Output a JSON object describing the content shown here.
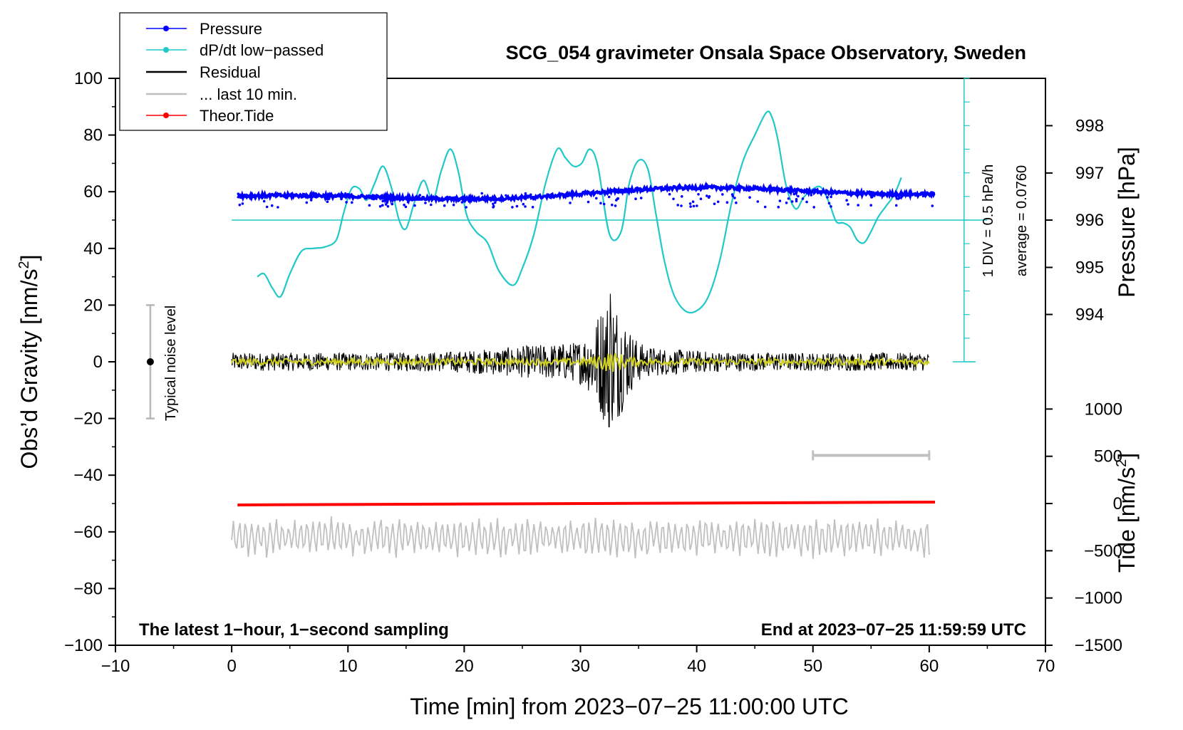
{
  "chart_data": {
    "type": "line",
    "title": "SCG_054 gravimeter Onsala Space Observatory, Sweden",
    "xlabel": "Time [min] from 2023−07−25 11:00:00 UTC",
    "ylabel_left": "Obs’d Gravity [nm/s",
    "ylabel_left_sup": "2",
    "ylabel_left_end": "]",
    "ylabel_right_pressure": "Pressure [hPa]",
    "ylabel_right_tide": "Tide [nm/s",
    "ylabel_right_tide_sup": "2",
    "ylabel_right_tide_end": "]",
    "xlim": [
      -10,
      70
    ],
    "ylim": [
      -100,
      100
    ],
    "x_ticks": [
      "−10",
      "0",
      "10",
      "20",
      "30",
      "40",
      "50",
      "60",
      "70"
    ],
    "x_tick_values": [
      -10,
      0,
      10,
      20,
      30,
      40,
      50,
      60,
      70
    ],
    "y_ticks": [
      "100",
      "80",
      "60",
      "40",
      "20",
      "0",
      "−20",
      "−40",
      "−60",
      "−80",
      "−100"
    ],
    "y_tick_values": [
      100,
      80,
      60,
      40,
      20,
      0,
      -20,
      -40,
      -60,
      -80,
      -100
    ],
    "pressure_axis": {
      "ticks": [
        "998",
        "997",
        "996",
        "995",
        "994"
      ],
      "tick_values": [
        998,
        997,
        996,
        995,
        994
      ],
      "gravity_equiv": [
        83.3,
        66.6,
        50,
        33.3,
        16.7
      ]
    },
    "tide_axis": {
      "ticks": [
        "1000",
        "500",
        "0",
        "−500",
        "−1000",
        "−1500"
      ],
      "tick_values": [
        1000,
        500,
        0,
        -500,
        -1000,
        -1500
      ]
    },
    "legend": [
      {
        "label": "Pressure",
        "color": "#0000ff",
        "marker": true
      },
      {
        "label": "dP/dt low−passed",
        "color": "#20c8c8",
        "marker": true
      },
      {
        "label": "Residual",
        "color": "#000000",
        "marker": false
      },
      {
        "label": "... last 10 min.",
        "color": "#c0c0c0",
        "marker": false
      },
      {
        "label": "Theor.Tide",
        "color": "#ff0000",
        "marker": true
      }
    ],
    "dpdt_scale": {
      "label1": "1 DIV = 0.5 hPa/h",
      "label2": "average = 0.0760",
      "zero_level": 50
    },
    "dpdt_series": {
      "x": [
        2.2,
        2.8,
        3.5,
        4.2,
        5,
        6,
        7,
        8,
        9,
        9.6,
        10.3,
        11,
        11.6,
        12.3,
        13,
        13.7,
        14.4,
        15,
        15.7,
        16.5,
        17.3,
        18,
        18.8,
        19.5,
        20.2,
        21,
        22,
        23,
        24.2,
        25,
        26,
        27,
        28,
        28.7,
        29.4,
        30.1,
        30.8,
        31.5,
        32.5,
        33.5,
        34.2,
        35,
        35.8,
        36.5,
        37.2,
        38,
        39,
        40,
        41,
        42,
        43,
        44,
        45,
        46,
        46.5,
        47,
        47.7,
        48.5,
        49.2,
        50,
        50.7,
        51.4,
        52,
        52.6,
        53.2,
        53.8,
        54.4,
        55,
        55.6,
        56.3,
        57,
        57.6
      ],
      "y": [
        30,
        31,
        26,
        23,
        31,
        39,
        40,
        40.5,
        43,
        52,
        61,
        61,
        57,
        63,
        69,
        62,
        50,
        47,
        56,
        64,
        57,
        67,
        75,
        67,
        52,
        46,
        42,
        32,
        27,
        33,
        45,
        63,
        75,
        72,
        69,
        70,
        75,
        69,
        45,
        46,
        63,
        71,
        68,
        52,
        36,
        24,
        18,
        18,
        23,
        36,
        56,
        71,
        80,
        88,
        86,
        78,
        62,
        54,
        58,
        61,
        61.5,
        56,
        49.5,
        49,
        47.5,
        43,
        42,
        46,
        51,
        55,
        59,
        65
      ]
    },
    "pressure_series": {
      "x_start": 0.5,
      "x_end": 60.5,
      "start": 58.5,
      "end": 60,
      "noise_amp": 1.2
    },
    "residual_series": {
      "x_start": 0,
      "x_end": 60,
      "base_amp": 3.2,
      "peak_time": 32.6,
      "peak_amp": 24,
      "spike_max": 24,
      "spike_min": -23
    },
    "filtered_series": {
      "x_start": 0,
      "x_end": 60,
      "color": "#d0d020",
      "base_amp": 1.2
    },
    "last10_series": {
      "x_start": 0,
      "x_end": 60,
      "center": -62,
      "amp": 7,
      "color": "#c0c0c0"
    },
    "tide_series": {
      "x_start": 0.5,
      "x_end": 60.5,
      "y_start": -50.5,
      "y_end": -49.5,
      "color": "#ff0000"
    },
    "last10_bar": {
      "x_start": 50,
      "x_end": 60,
      "y": -33
    },
    "noise_bar": {
      "x": -7,
      "y_center": 0,
      "y_low": -20,
      "y_high": 20,
      "label": "Typical noise level"
    },
    "note_left": "The latest 1−hour, 1−second sampling",
    "note_right": "End at 2023−07−25 11:59:59 UTC"
  }
}
